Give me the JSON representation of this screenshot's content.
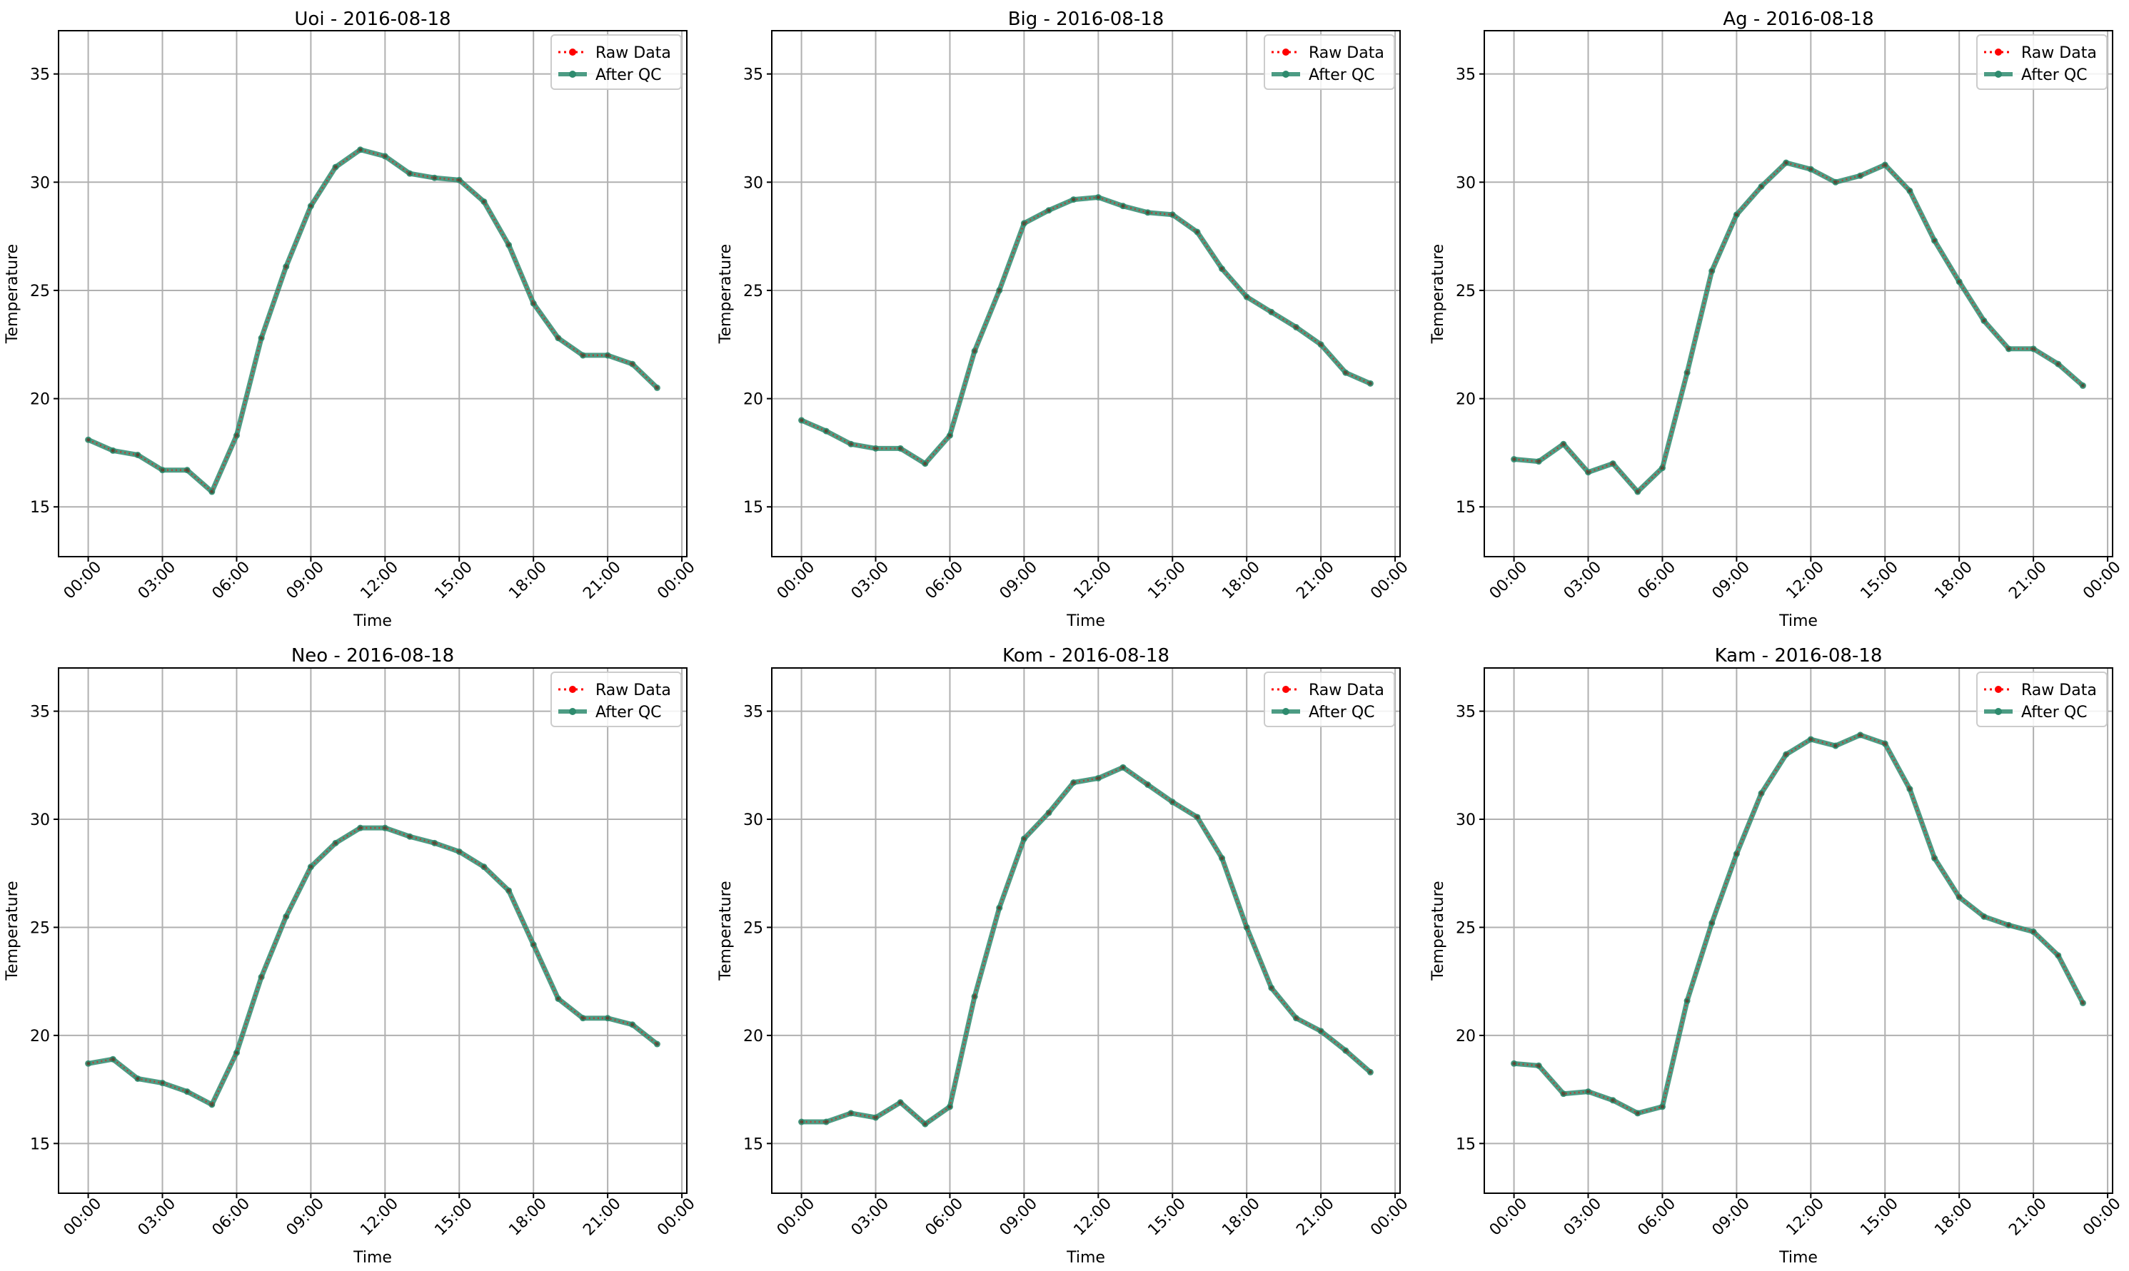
{
  "legend_labels": {
    "raw": "Raw Data",
    "qc": "After QC"
  },
  "colors": {
    "raw": "#ff0000",
    "qc": "#2e8b6e",
    "grid": "#b0b0b0",
    "axis": "#000000"
  },
  "chart_data": [
    {
      "type": "line",
      "title": "Uoi - 2016-08-18",
      "xlabel": "Time",
      "ylabel": "Temperature",
      "x_ticks": [
        "00:00",
        "03:00",
        "06:00",
        "09:00",
        "12:00",
        "15:00",
        "18:00",
        "21:00",
        "00:00"
      ],
      "x_tick_hours": [
        0,
        3,
        6,
        9,
        12,
        15,
        18,
        21,
        24
      ],
      "y_ticks": [
        15,
        20,
        25,
        30,
        35
      ],
      "xlim": [
        -1.2,
        24.2
      ],
      "ylim": [
        12.7,
        37.0
      ],
      "grid": true,
      "legend_position": "top-right",
      "x_hours": [
        0,
        1,
        2,
        3,
        4,
        5,
        6,
        7,
        8,
        9,
        10,
        11,
        12,
        13,
        14,
        15,
        16,
        17,
        18,
        19,
        20,
        21,
        22,
        23
      ],
      "series": [
        {
          "name": "Raw Data",
          "style": "dotted",
          "values": [
            18.1,
            17.6,
            17.4,
            16.7,
            16.7,
            15.7,
            18.3,
            22.8,
            26.1,
            28.9,
            30.7,
            31.5,
            31.2,
            30.4,
            30.2,
            30.1,
            29.1,
            27.1,
            24.4,
            22.8,
            22.0,
            22.0,
            21.6,
            20.5
          ]
        },
        {
          "name": "After QC",
          "style": "solid",
          "values": [
            18.1,
            17.6,
            17.4,
            16.7,
            16.7,
            15.7,
            18.3,
            22.8,
            26.1,
            28.9,
            30.7,
            31.5,
            31.2,
            30.4,
            30.2,
            30.1,
            29.1,
            27.1,
            24.4,
            22.8,
            22.0,
            22.0,
            21.6,
            20.5
          ]
        }
      ]
    },
    {
      "type": "line",
      "title": "Big - 2016-08-18",
      "xlabel": "Time",
      "ylabel": "Temperature",
      "x_ticks": [
        "00:00",
        "03:00",
        "06:00",
        "09:00",
        "12:00",
        "15:00",
        "18:00",
        "21:00",
        "00:00"
      ],
      "x_tick_hours": [
        0,
        3,
        6,
        9,
        12,
        15,
        18,
        21,
        24
      ],
      "y_ticks": [
        15,
        20,
        25,
        30,
        35
      ],
      "xlim": [
        -1.2,
        24.2
      ],
      "ylim": [
        12.7,
        37.0
      ],
      "grid": true,
      "legend_position": "top-right",
      "x_hours": [
        0,
        1,
        2,
        3,
        4,
        5,
        6,
        7,
        8,
        9,
        10,
        11,
        12,
        13,
        14,
        15,
        16,
        17,
        18,
        19,
        20,
        21,
        22,
        23
      ],
      "series": [
        {
          "name": "Raw Data",
          "style": "dotted",
          "values": [
            19.0,
            18.5,
            17.9,
            17.7,
            17.7,
            17.0,
            18.3,
            22.2,
            25.0,
            28.1,
            28.7,
            29.2,
            29.3,
            28.9,
            28.6,
            28.5,
            27.7,
            26.0,
            24.7,
            24.0,
            23.3,
            22.5,
            21.2,
            20.7
          ]
        },
        {
          "name": "After QC",
          "style": "solid",
          "values": [
            19.0,
            18.5,
            17.9,
            17.7,
            17.7,
            17.0,
            18.3,
            22.2,
            25.0,
            28.1,
            28.7,
            29.2,
            29.3,
            28.9,
            28.6,
            28.5,
            27.7,
            26.0,
            24.7,
            24.0,
            23.3,
            22.5,
            21.2,
            20.7
          ]
        }
      ]
    },
    {
      "type": "line",
      "title": "Ag - 2016-08-18",
      "xlabel": "Time",
      "ylabel": "Temperature",
      "x_ticks": [
        "00:00",
        "03:00",
        "06:00",
        "09:00",
        "12:00",
        "15:00",
        "18:00",
        "21:00",
        "00:00"
      ],
      "x_tick_hours": [
        0,
        3,
        6,
        9,
        12,
        15,
        18,
        21,
        24
      ],
      "y_ticks": [
        15,
        20,
        25,
        30,
        35
      ],
      "xlim": [
        -1.2,
        24.2
      ],
      "ylim": [
        12.7,
        37.0
      ],
      "grid": true,
      "legend_position": "top-right",
      "x_hours": [
        0,
        1,
        2,
        3,
        4,
        5,
        6,
        7,
        8,
        9,
        10,
        11,
        12,
        13,
        14,
        15,
        16,
        17,
        18,
        19,
        20,
        21,
        22,
        23
      ],
      "series": [
        {
          "name": "Raw Data",
          "style": "dotted",
          "values": [
            17.2,
            17.1,
            17.9,
            16.6,
            17.0,
            15.7,
            16.8,
            21.2,
            25.9,
            28.5,
            29.8,
            30.9,
            30.6,
            30.0,
            30.3,
            30.8,
            29.6,
            27.3,
            25.4,
            23.6,
            22.3,
            22.3,
            21.6,
            20.6
          ]
        },
        {
          "name": "After QC",
          "style": "solid",
          "values": [
            17.2,
            17.1,
            17.9,
            16.6,
            17.0,
            15.7,
            16.8,
            21.2,
            25.9,
            28.5,
            29.8,
            30.9,
            30.6,
            30.0,
            30.3,
            30.8,
            29.6,
            27.3,
            25.4,
            23.6,
            22.3,
            22.3,
            21.6,
            20.6
          ]
        }
      ]
    },
    {
      "type": "line",
      "title": "Neo - 2016-08-18",
      "xlabel": "Time",
      "ylabel": "Temperature",
      "x_ticks": [
        "00:00",
        "03:00",
        "06:00",
        "09:00",
        "12:00",
        "15:00",
        "18:00",
        "21:00",
        "00:00"
      ],
      "x_tick_hours": [
        0,
        3,
        6,
        9,
        12,
        15,
        18,
        21,
        24
      ],
      "y_ticks": [
        15,
        20,
        25,
        30,
        35
      ],
      "xlim": [
        -1.2,
        24.2
      ],
      "ylim": [
        12.7,
        37.0
      ],
      "grid": true,
      "legend_position": "top-right",
      "x_hours": [
        0,
        1,
        2,
        3,
        4,
        5,
        6,
        7,
        8,
        9,
        10,
        11,
        12,
        13,
        14,
        15,
        16,
        17,
        18,
        19,
        20,
        21,
        22,
        23
      ],
      "series": [
        {
          "name": "Raw Data",
          "style": "dotted",
          "values": [
            18.7,
            18.9,
            18.0,
            17.8,
            17.4,
            16.8,
            19.2,
            22.7,
            25.5,
            27.8,
            28.9,
            29.6,
            29.6,
            29.2,
            28.9,
            28.5,
            27.8,
            26.7,
            24.2,
            21.7,
            20.8,
            20.8,
            20.5,
            19.6
          ]
        },
        {
          "name": "After QC",
          "style": "solid",
          "values": [
            18.7,
            18.9,
            18.0,
            17.8,
            17.4,
            16.8,
            19.2,
            22.7,
            25.5,
            27.8,
            28.9,
            29.6,
            29.6,
            29.2,
            28.9,
            28.5,
            27.8,
            26.7,
            24.2,
            21.7,
            20.8,
            20.8,
            20.5,
            19.6
          ]
        }
      ]
    },
    {
      "type": "line",
      "title": "Kom - 2016-08-18",
      "xlabel": "Time",
      "ylabel": "Temperature",
      "x_ticks": [
        "00:00",
        "03:00",
        "06:00",
        "09:00",
        "12:00",
        "15:00",
        "18:00",
        "21:00",
        "00:00"
      ],
      "x_tick_hours": [
        0,
        3,
        6,
        9,
        12,
        15,
        18,
        21,
        24
      ],
      "y_ticks": [
        15,
        20,
        25,
        30,
        35
      ],
      "xlim": [
        -1.2,
        24.2
      ],
      "ylim": [
        12.7,
        37.0
      ],
      "grid": true,
      "legend_position": "top-right",
      "x_hours": [
        0,
        1,
        2,
        3,
        4,
        5,
        6,
        7,
        8,
        9,
        10,
        11,
        12,
        13,
        14,
        15,
        16,
        17,
        18,
        19,
        20,
        21,
        22,
        23
      ],
      "series": [
        {
          "name": "Raw Data",
          "style": "dotted",
          "values": [
            16.0,
            16.0,
            16.4,
            16.2,
            16.9,
            15.9,
            16.7,
            21.8,
            25.9,
            29.1,
            30.3,
            31.7,
            31.9,
            32.4,
            31.6,
            30.8,
            30.1,
            28.2,
            25.0,
            22.2,
            20.8,
            20.2,
            19.3,
            18.3
          ]
        },
        {
          "name": "After QC",
          "style": "solid",
          "values": [
            16.0,
            16.0,
            16.4,
            16.2,
            16.9,
            15.9,
            16.7,
            21.8,
            25.9,
            29.1,
            30.3,
            31.7,
            31.9,
            32.4,
            31.6,
            30.8,
            30.1,
            28.2,
            25.0,
            22.2,
            20.8,
            20.2,
            19.3,
            18.3
          ]
        }
      ]
    },
    {
      "type": "line",
      "title": "Kam - 2016-08-18",
      "xlabel": "Time",
      "ylabel": "Temperature",
      "x_ticks": [
        "00:00",
        "03:00",
        "06:00",
        "09:00",
        "12:00",
        "15:00",
        "18:00",
        "21:00",
        "00:00"
      ],
      "x_tick_hours": [
        0,
        3,
        6,
        9,
        12,
        15,
        18,
        21,
        24
      ],
      "y_ticks": [
        15,
        20,
        25,
        30,
        35
      ],
      "xlim": [
        -1.2,
        24.2
      ],
      "ylim": [
        12.7,
        37.0
      ],
      "grid": true,
      "legend_position": "top-right",
      "x_hours": [
        0,
        1,
        2,
        3,
        4,
        5,
        6,
        7,
        8,
        9,
        10,
        11,
        12,
        13,
        14,
        15,
        16,
        17,
        18,
        19,
        20,
        21,
        22,
        23
      ],
      "series": [
        {
          "name": "Raw Data",
          "style": "dotted",
          "values": [
            18.7,
            18.6,
            17.3,
            17.4,
            17.0,
            16.4,
            16.7,
            21.6,
            25.2,
            28.4,
            31.2,
            33.0,
            33.7,
            33.4,
            33.9,
            33.5,
            31.4,
            28.2,
            26.4,
            25.5,
            25.1,
            24.8,
            23.7,
            21.5
          ]
        },
        {
          "name": "After QC",
          "style": "solid",
          "values": [
            18.7,
            18.6,
            17.3,
            17.4,
            17.0,
            16.4,
            16.7,
            21.6,
            25.2,
            28.4,
            31.2,
            33.0,
            33.7,
            33.4,
            33.9,
            33.5,
            31.4,
            28.2,
            26.4,
            25.5,
            25.1,
            24.8,
            23.7,
            21.5
          ]
        }
      ]
    }
  ]
}
